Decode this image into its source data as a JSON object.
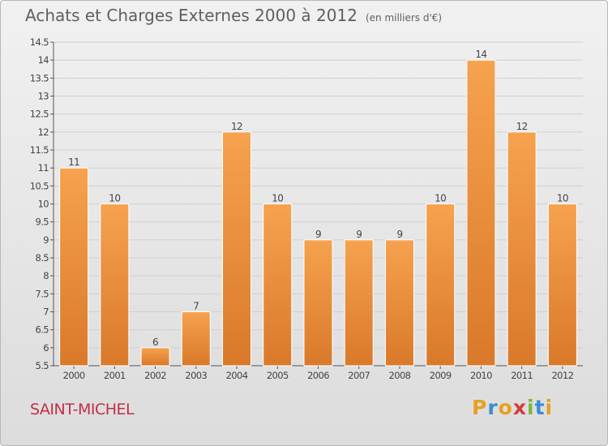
{
  "header": {
    "title": "Achats et Charges Externes 2000 à 2012",
    "unit": "(en milliers d'€)"
  },
  "place": "SAINT-MICHEL",
  "brand": {
    "letters": [
      "P",
      "r",
      "o",
      "x",
      "i",
      "t",
      "i"
    ],
    "colors": [
      "#e8a020",
      "#3a8fd0",
      "#e8a020",
      "#d23c3c",
      "#7ab83c",
      "#3a8fd0",
      "#e8a020"
    ]
  },
  "colors": {
    "bar_top": "#f6a24e",
    "bar_bottom": "#d9792a",
    "bar_edge": "#ffffff",
    "grid": "#cfcfcf",
    "axis": "#555555",
    "text": "#444444"
  },
  "chart_data": {
    "type": "bar",
    "categories": [
      "2000",
      "2001",
      "2002",
      "2003",
      "2004",
      "2005",
      "2006",
      "2007",
      "2008",
      "2009",
      "2010",
      "2011",
      "2012"
    ],
    "values": [
      11,
      10,
      6,
      7,
      12,
      10,
      9,
      9,
      9,
      10,
      14,
      12,
      10
    ],
    "data_labels": [
      "11",
      "10",
      "6",
      "7",
      "12",
      "10",
      "9",
      "9",
      "9",
      "10",
      "14",
      "12",
      "10"
    ],
    "ylim": [
      5.5,
      14.5
    ],
    "y_ticks": [
      "5.5",
      "6",
      "6.5",
      "7",
      "7.5",
      "8",
      "8.5",
      "9",
      "9.5",
      "10",
      "10.5",
      "11",
      "11.5",
      "12",
      "12.5",
      "13",
      "13.5",
      "14",
      "14.5"
    ],
    "grid": true,
    "xlabel": "",
    "ylabel": ""
  }
}
